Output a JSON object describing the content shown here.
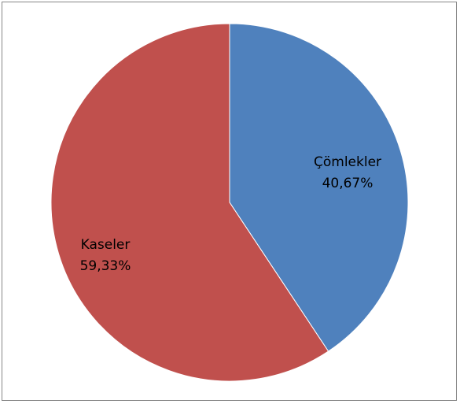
{
  "chart_data": {
    "type": "pie",
    "title": "",
    "slices": [
      {
        "label": "Çömlekler",
        "value": 40.67,
        "percent_label": "40,67%",
        "color": "#4F81BD"
      },
      {
        "label": "Kaseler",
        "value": 59.33,
        "percent_label": "59,33%",
        "color": "#C0504D"
      }
    ],
    "start_angle_deg": 0,
    "direction": "clockwise",
    "legend": "none"
  },
  "colors": {
    "border": "#868686",
    "slice_stroke": "#ffffff",
    "background": "#ffffff"
  }
}
